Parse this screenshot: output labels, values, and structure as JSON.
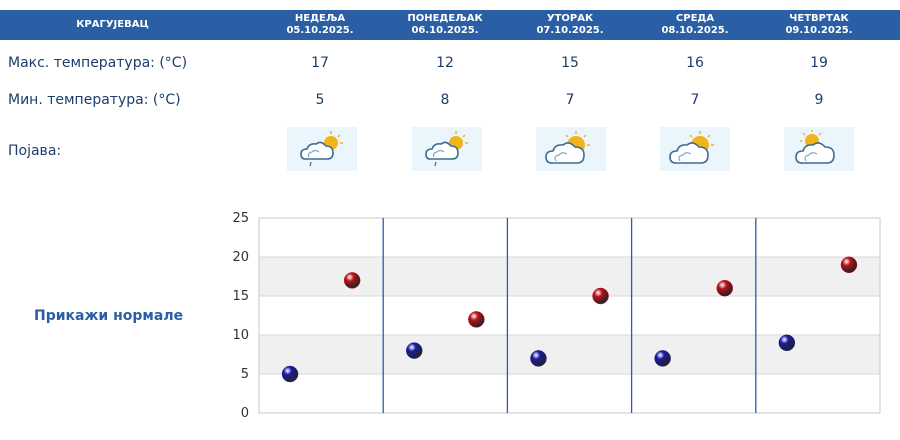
{
  "header": {
    "city": "КРАГУЈЕВАЦ"
  },
  "days": [
    {
      "name": "НЕДЕЉА",
      "date": "05.10.2025.",
      "max": "17",
      "min": "5",
      "icon": "cloud-sun-drizzle-icon"
    },
    {
      "name": "ПОНЕДЕЉАК",
      "date": "06.10.2025.",
      "max": "12",
      "min": "8",
      "icon": "cloud-sun-drizzle-icon"
    },
    {
      "name": "УТОРАК",
      "date": "07.10.2025.",
      "max": "15",
      "min": "7",
      "icon": "cloud-sun-icon"
    },
    {
      "name": "СРЕДА",
      "date": "08.10.2025.",
      "max": "16",
      "min": "7",
      "icon": "cloud-sun-icon"
    },
    {
      "name": "ЧЕТВРТАК",
      "date": "09.10.2025.",
      "max": "19",
      "min": "9",
      "icon": "sun-behind-cloud-icon"
    }
  ],
  "rows": {
    "max_label": "Макс. температура: (°C)",
    "min_label": "Мин. температура: (°C)",
    "phenomenon_label": "Појава:"
  },
  "normals_link": "Прикажи нормале",
  "chart_data": {
    "type": "scatter",
    "categories": [
      "05.10.2025.",
      "06.10.2025.",
      "07.10.2025.",
      "08.10.2025.",
      "09.10.2025."
    ],
    "series": [
      {
        "values": [
          5,
          8,
          7,
          7,
          9
        ],
        "color": "#1a1aa6"
      },
      {
        "values": [
          17,
          12,
          15,
          16,
          19
        ],
        "color": "#c0101a"
      }
    ],
    "ylim": [
      0,
      25
    ],
    "yticks": [
      0,
      5,
      10,
      15,
      20,
      25
    ],
    "grid": true,
    "alternating_bands": true
  },
  "colors": {
    "header": "#2a5fa5",
    "text": "#1d3d6b",
    "divider": "#2a5fa5",
    "band": "#f0f0f0"
  }
}
